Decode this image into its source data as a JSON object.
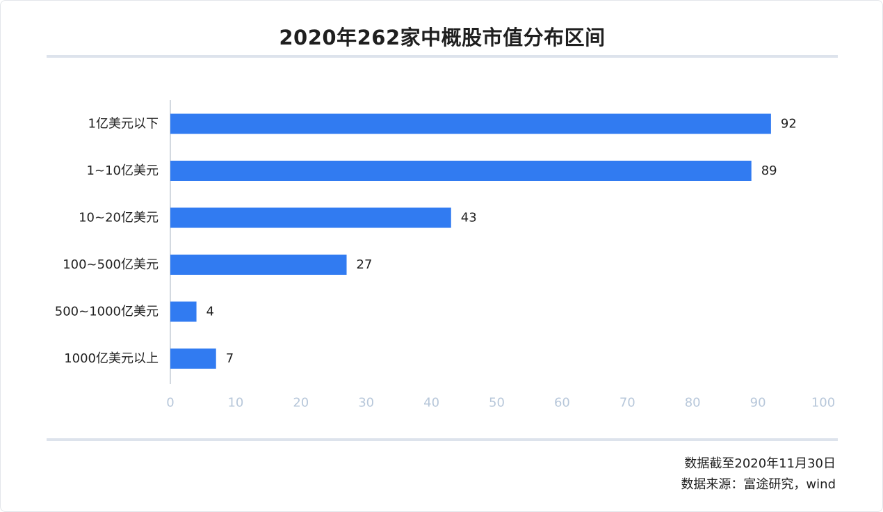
{
  "chart_data": {
    "type": "bar",
    "orientation": "horizontal",
    "title": "2020年262家中概股市值分布区间",
    "categories": [
      "1亿美元以下",
      "1~10亿美元",
      "10~20亿美元",
      "100~500亿美元",
      "500~1000亿美元",
      "1000亿美元以上"
    ],
    "values": [
      92,
      89,
      43,
      27,
      4,
      7
    ],
    "xlim": [
      0,
      100
    ],
    "xticks": [
      0,
      10,
      20,
      30,
      40,
      50,
      60,
      70,
      80,
      90,
      100
    ],
    "grid": false,
    "bar_color": "#317bf1",
    "tick_color": "#b7c7da"
  },
  "footer": {
    "date_note": "数据截至2020年11月30日",
    "source_note": "数据来源：富途研究，wind"
  }
}
